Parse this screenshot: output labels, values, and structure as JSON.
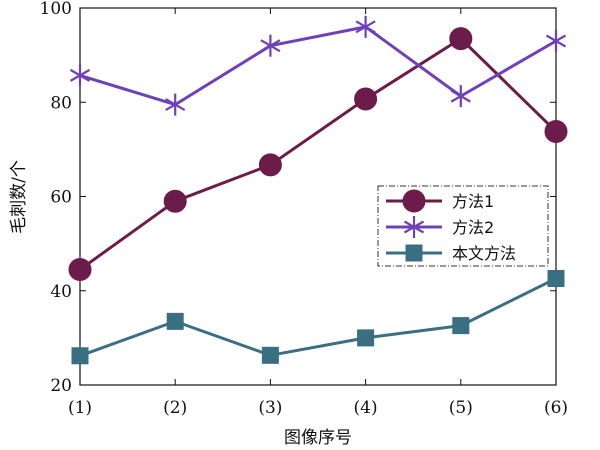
{
  "chart_data": {
    "type": "line",
    "categories": [
      "(1)",
      "(2)",
      "(3)",
      "(4)",
      "(5)",
      "(6)"
    ],
    "xlabel": "图像序号",
    "ylabel": "毛刺数/个",
    "ylim": [
      20,
      100
    ],
    "yticks": [
      20,
      40,
      60,
      80,
      100
    ],
    "grid": false,
    "legend_position": "right",
    "series": [
      {
        "name": "方法1",
        "values": [
          44.5,
          59,
          66.7,
          80.7,
          93.5,
          73.8
        ],
        "color": "#6b1c4a",
        "marker": "circle"
      },
      {
        "name": "方法2",
        "values": [
          85.7,
          79.5,
          92,
          96,
          81.3,
          93
        ],
        "color": "#7040b8",
        "marker": "asterisk"
      },
      {
        "name": "本文方法",
        "values": [
          26.2,
          33.5,
          26.3,
          30,
          32.6,
          42.6
        ],
        "color": "#3a6e83",
        "marker": "square"
      }
    ]
  }
}
